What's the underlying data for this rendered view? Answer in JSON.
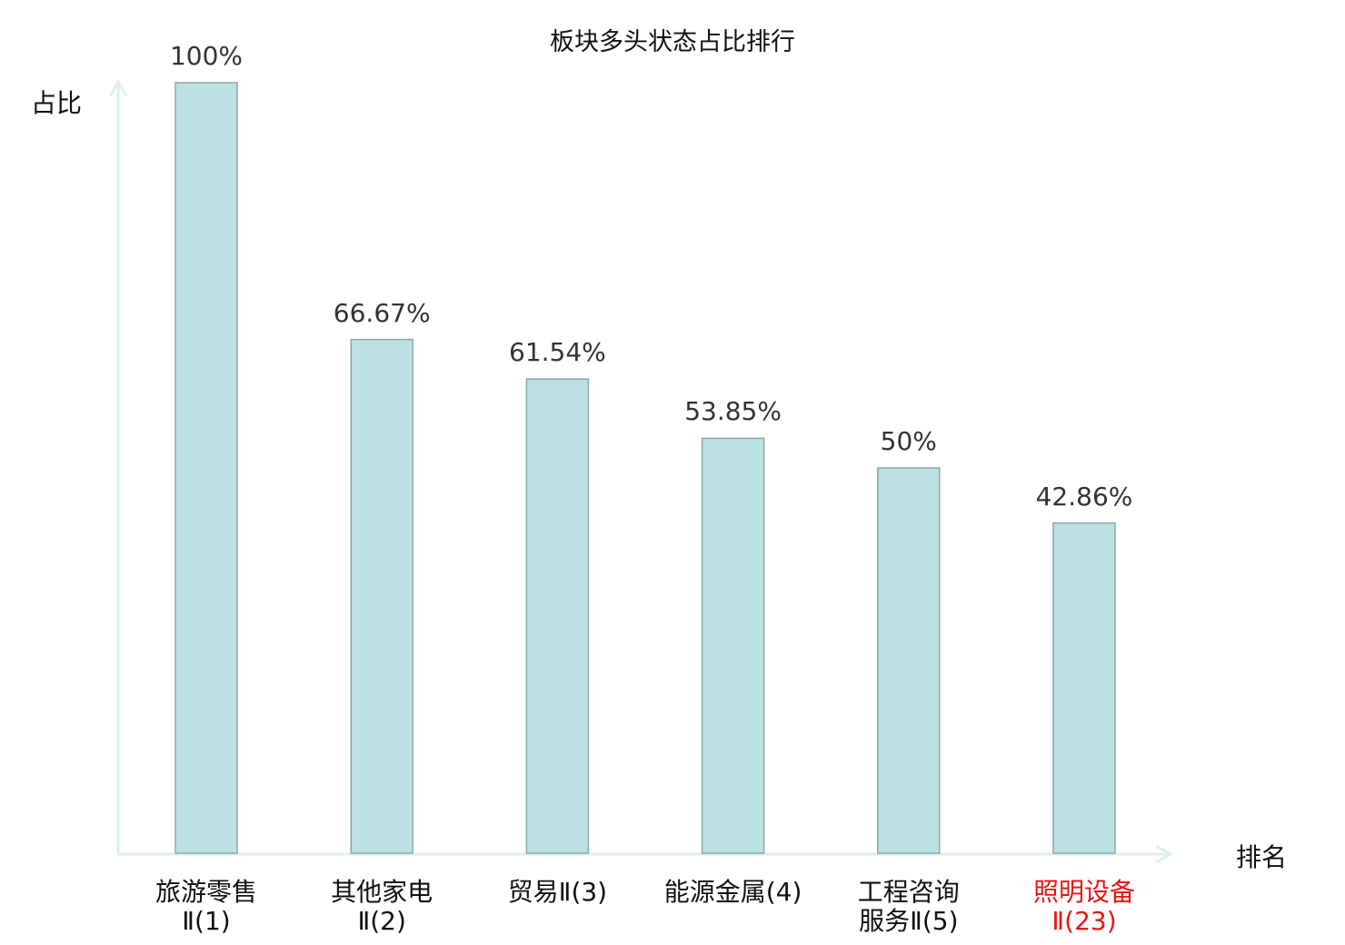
{
  "chart_data": {
    "type": "bar",
    "title": "板块多头状态占比排行",
    "ylabel": "占比",
    "xlabel": "排名",
    "categories": [
      "旅游零售\nⅡ(1)",
      "其他家电\nⅡ(2)",
      "贸易Ⅱ(3)",
      "能源金属(4)",
      "工程咨询\n服务Ⅱ(5)",
      "照明设备\nⅡ(23)"
    ],
    "values": [
      100,
      66.67,
      61.54,
      53.85,
      50,
      42.86
    ],
    "value_labels": [
      "100%",
      "66.67%",
      "61.54%",
      "53.85%",
      "50%",
      "42.86%"
    ],
    "highlight_index": 5,
    "ylim": [
      0,
      100
    ],
    "grid": false,
    "colors": {
      "bar_fill": "#bce0e3",
      "bar_stroke": "#8aa8aa",
      "axis": "#dcf1ee",
      "highlight_text": "#e8140f",
      "text": "#111111"
    }
  }
}
